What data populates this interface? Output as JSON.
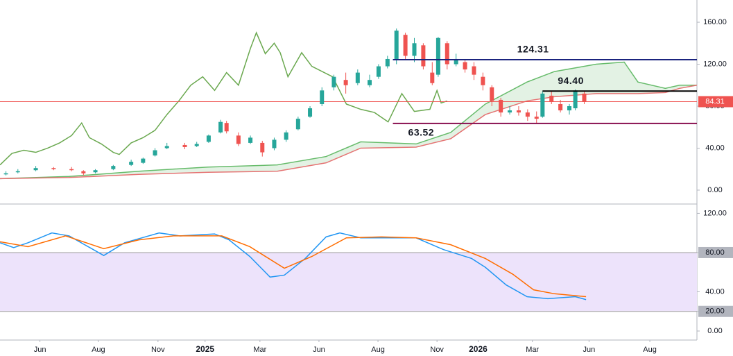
{
  "chart_data": [
    {
      "type": "candlestick",
      "xlim": [
        0,
        116.9
      ],
      "ylim": [
        -12.6,
        181.2
      ],
      "yticks": [
        {
          "value": 0,
          "label": "0.00"
        },
        {
          "value": 40,
          "label": "40.00"
        },
        {
          "value": 80,
          "label": "80.00"
        },
        {
          "value": 120,
          "label": "120.00"
        },
        {
          "value": 160,
          "label": "160.00"
        }
      ],
      "up_color": "#26a69a",
      "down_color": "#ef5350",
      "x": [
        1,
        3,
        6,
        9,
        12,
        14,
        16,
        19,
        22,
        24,
        26,
        28,
        31,
        33,
        35,
        37,
        38,
        40,
        42,
        44,
        46,
        48,
        50,
        52,
        54,
        56,
        58,
        60,
        62,
        63.5,
        65,
        66.5,
        68,
        69.5,
        71,
        72.5,
        73.5,
        75,
        76.5,
        78,
        79.5,
        81,
        82.5,
        84,
        85.5,
        87,
        88.5,
        90,
        91,
        92.5,
        94,
        95.5,
        96.5,
        98
      ],
      "open": [
        15,
        17,
        19,
        21,
        20,
        18,
        17,
        20,
        24,
        26,
        33,
        40,
        43,
        42,
        46,
        55,
        64,
        52,
        45,
        45,
        40,
        48,
        58,
        70,
        82,
        98,
        105,
        102,
        100,
        108,
        118,
        125,
        148,
        128,
        138,
        112,
        110,
        140,
        120,
        122,
        118,
        108,
        98,
        86,
        74,
        76,
        74,
        70,
        70,
        90,
        82,
        76,
        78,
        92
      ],
      "close": [
        16,
        18,
        21,
        20,
        19,
        16,
        19,
        23,
        27,
        30,
        38,
        42,
        41,
        44,
        52,
        65,
        56,
        44,
        50,
        36,
        48,
        55,
        68,
        78,
        95,
        108,
        100,
        112,
        105,
        118,
        125,
        152,
        128,
        140,
        118,
        102,
        145,
        120,
        125,
        115,
        110,
        100,
        85,
        74,
        76,
        74,
        70,
        68,
        92,
        84,
        76,
        80,
        95,
        84.31
      ],
      "high": [
        18,
        20,
        23,
        22,
        22,
        19,
        20,
        24,
        29,
        31,
        40,
        45,
        45,
        46,
        53,
        67,
        66,
        55,
        52,
        47,
        50,
        57,
        70,
        80,
        98,
        110,
        112,
        115,
        110,
        120,
        128,
        154,
        150,
        145,
        140,
        122,
        146,
        142,
        130,
        125,
        122,
        112,
        100,
        88,
        80,
        80,
        77,
        75,
        94,
        94,
        86,
        82,
        96,
        94
      ],
      "low": [
        14,
        16,
        18,
        19,
        18,
        14,
        16,
        19,
        23,
        25,
        32,
        39,
        39,
        41,
        45,
        54,
        54,
        42,
        44,
        32,
        38,
        46,
        57,
        69,
        80,
        95,
        92,
        100,
        98,
        106,
        116,
        120,
        125,
        122,
        115,
        100,
        108,
        115,
        118,
        112,
        105,
        95,
        80,
        70,
        72,
        71,
        66,
        64,
        69,
        82,
        74,
        72,
        76,
        82
      ],
      "lines": [
        {
          "color": "#6aa84f",
          "x": [
            0,
            2,
            4,
            6,
            8,
            10,
            12,
            13.7,
            15,
            17,
            19,
            20,
            22,
            24,
            26,
            28,
            30,
            32,
            34,
            36,
            38,
            40,
            42,
            43,
            44.5,
            46,
            47,
            48.3,
            50.6,
            52.3,
            55.8,
            58.1,
            60.5,
            62.8,
            65.1,
            67.4,
            69.5,
            72.1,
            73.3,
            74,
            75
          ],
          "values": [
            24,
            35,
            38,
            36,
            40,
            45,
            52,
            64,
            50,
            44,
            36,
            34,
            45,
            50,
            57,
            72,
            85,
            100,
            108,
            95,
            112,
            100,
            135,
            150,
            130,
            140,
            131,
            108,
            131,
            118,
            108,
            82,
            77,
            74,
            65,
            92,
            75,
            77,
            95,
            83,
            85
          ]
        },
        {
          "color": "#66bb6a",
          "x": [
            0,
            11.6,
            23.3,
            34.9,
            46.5,
            54.7,
            60.5,
            69.8,
            75.6,
            81.4,
            88.4,
            93,
            100,
            104.7,
            107,
            111.6,
            114,
            116.9
          ],
          "values": [
            11,
            13,
            18,
            22,
            24,
            32,
            46,
            44,
            55,
            82,
            103,
            113,
            120,
            122,
            103,
            97,
            100,
            100
          ]
        },
        {
          "color": "#e57373",
          "x": [
            0,
            11.6,
            23.3,
            34.9,
            46.5,
            54.7,
            60.5,
            69.8,
            75.6,
            81.4,
            88.4,
            93,
            100,
            104.7,
            107,
            111.6,
            114,
            116.9
          ],
          "values": [
            11,
            12,
            15,
            17,
            18,
            26,
            40,
            41,
            49,
            72,
            85,
            89,
            92,
            92,
            92,
            93,
            97,
            100
          ]
        }
      ],
      "cloud_color": "#c8e6c9",
      "levels": [
        {
          "value": 124.31,
          "color": "#1a237e",
          "x_start": 65.9
        },
        {
          "value": 94.4,
          "label": "94.40",
          "color": "#000000",
          "x_start": 91
        },
        {
          "value": 63.52,
          "color": "#880e4f",
          "x_start": 65.9
        }
      ],
      "last_price": 84.31,
      "last_price_color": "#ef5350"
    },
    {
      "type": "line",
      "xlim": [
        0,
        116.9
      ],
      "ylim": [
        -9.2,
        128.8
      ],
      "yticks": [
        {
          "value": 0,
          "label": "0.00"
        },
        {
          "value": 20,
          "label": "20.00"
        },
        {
          "value": 40,
          "label": "40.00"
        },
        {
          "value": 80,
          "label": "80.00"
        },
        {
          "value": 120,
          "label": "120.00"
        }
      ],
      "band": [
        20,
        80
      ],
      "band_color": "#ede3fb",
      "xticks": [
        {
          "value": 6.7,
          "label": "Jun"
        },
        {
          "value": 16.5,
          "label": "Aug"
        },
        {
          "value": 26.5,
          "label": "Nov"
        },
        {
          "value": 34.4,
          "label": "2025"
        },
        {
          "value": 43.6,
          "label": "Mar"
        },
        {
          "value": 53.5,
          "label": "Jun"
        },
        {
          "value": 63.4,
          "label": "Aug"
        },
        {
          "value": 73.3,
          "label": "Nov"
        },
        {
          "value": 80.2,
          "label": "2026"
        },
        {
          "value": 89.3,
          "label": "Mar"
        },
        {
          "value": 98.8,
          "label": "Jun"
        },
        {
          "value": 109,
          "label": "Aug"
        }
      ],
      "series": [
        {
          "color": "#2196f3",
          "x": [
            0,
            2.3,
            4.7,
            8.7,
            11.6,
            17.4,
            20.9,
            26.7,
            30.2,
            36,
            38.4,
            41.9,
            45.3,
            47.7,
            51.2,
            54.7,
            57,
            60.5,
            65.1,
            69.8,
            74.4,
            79.1,
            81.4,
            84.9,
            88.4,
            91.9,
            96.5,
            98.3
          ],
          "values": [
            90,
            85,
            90,
            100,
            97,
            77,
            90,
            100,
            97,
            99,
            93,
            76,
            55,
            57,
            74,
            96,
            100,
            95,
            95,
            95,
            83,
            74,
            65,
            47,
            35,
            33,
            35,
            32
          ]
        },
        {
          "color": "#ff6d00",
          "x": [
            0,
            4.7,
            11,
            17.4,
            23.3,
            29.1,
            37.2,
            41.9,
            47.7,
            52.3,
            58.1,
            64,
            69.8,
            75.6,
            81.4,
            86,
            89.5,
            93,
            98.3
          ],
          "values": [
            91,
            86,
            97,
            84,
            93,
            97,
            97,
            86,
            64,
            76,
            95,
            96,
            95,
            88,
            74,
            58,
            42,
            38,
            35
          ]
        }
      ]
    }
  ]
}
